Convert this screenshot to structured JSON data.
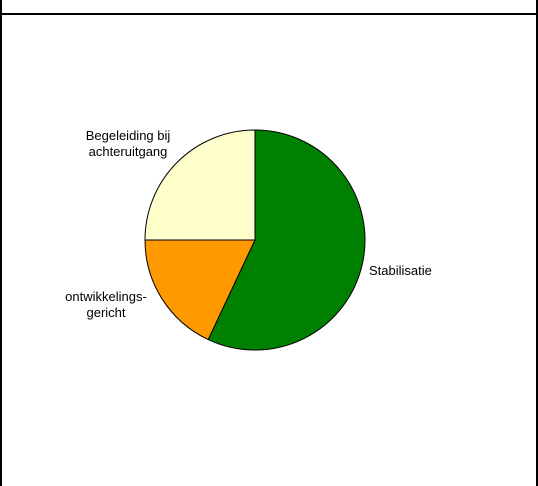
{
  "chart_data": {
    "type": "pie",
    "title": "",
    "categories": [
      "Stabilisatie",
      "ontwikkelings-gericht",
      "Begeleiding bij achteruitgang"
    ],
    "label_lines": [
      [
        "Stabilisatie"
      ],
      [
        "ontwikkelings-",
        "gericht"
      ],
      [
        "Begeleiding bij",
        "achteruitgang"
      ]
    ],
    "values": [
      57,
      18,
      25
    ],
    "colors": [
      "#008000",
      "#FF9900",
      "#FFFFCC"
    ],
    "start_angle": "12 o'clock",
    "direction": "clockwise",
    "legend": "none"
  }
}
